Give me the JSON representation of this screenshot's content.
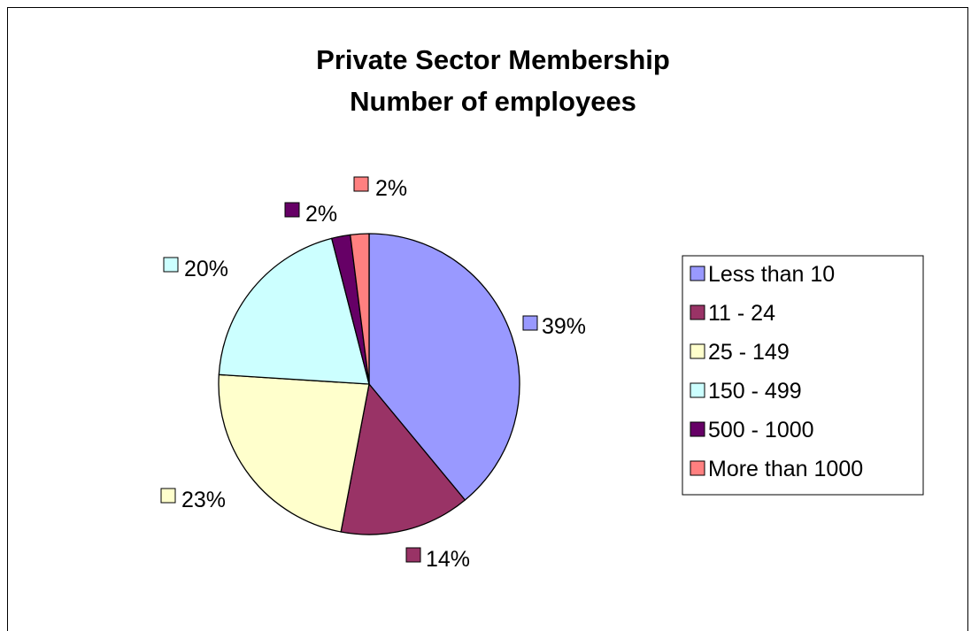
{
  "chart_data": {
    "type": "pie",
    "title_lines": [
      "Private Sector Membership",
      "Number of employees"
    ],
    "slices": [
      {
        "label": "Less than 10",
        "value": 39,
        "display": "39%",
        "color": "#9999ff"
      },
      {
        "label": "11 - 24",
        "value": 14,
        "display": "14%",
        "color": "#993366"
      },
      {
        "label": "25 - 149",
        "value": 23,
        "display": "23%",
        "color": "#ffffcc"
      },
      {
        "label": "150 - 499",
        "value": 20,
        "display": "20%",
        "color": "#ccffff"
      },
      {
        "label": "500 - 1000",
        "value": 2,
        "display": "2%",
        "color": "#660066"
      },
      {
        "label": "More than 1000",
        "value": 2,
        "display": "2%",
        "color": "#ff8080"
      }
    ],
    "legend_position": "right",
    "start_angle": "12 o'clock",
    "direction": "clockwise"
  }
}
